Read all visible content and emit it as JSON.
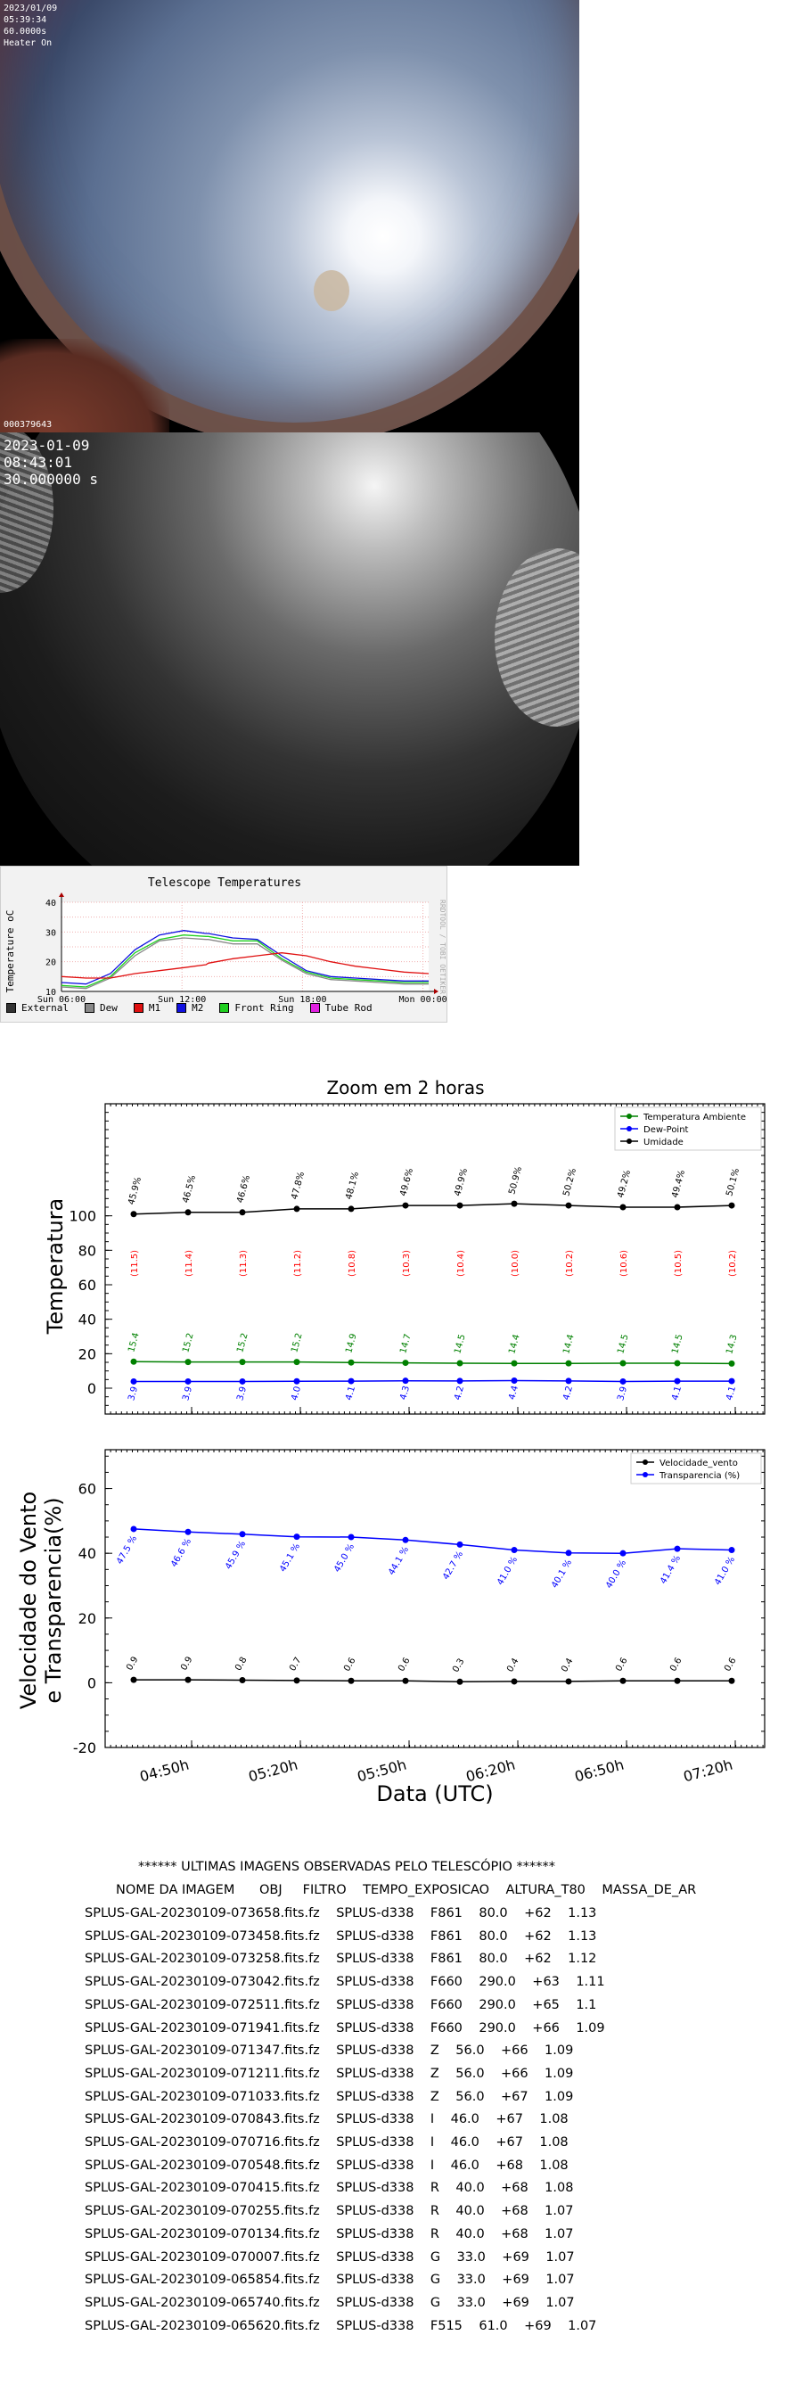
{
  "camera1": {
    "date": "2023/01/09",
    "time": "05:39:34",
    "exposure": "60.0000s",
    "heater": "Heater On",
    "frame_id": "000379643"
  },
  "camera2": {
    "date": "2023-01-09",
    "time": "08:43:01",
    "exposure": "30.000000 s"
  },
  "telescope_temperatures": {
    "title": "Telescope Temperatures",
    "ylabel": "Temperature oC",
    "side_label": "RRDTOOL / TOBI OETIKER",
    "legend": [
      {
        "label": "External",
        "color": "#333333"
      },
      {
        "label": "Dew",
        "color": "#888888"
      },
      {
        "label": "M1",
        "color": "#e01010"
      },
      {
        "label": "M2",
        "color": "#1010e0"
      },
      {
        "label": "Front Ring",
        "color": "#20d020"
      },
      {
        "label": "Tube Rod",
        "color": "#e020e0"
      }
    ],
    "chart_data": {
      "type": "line",
      "title": "Telescope Temperatures",
      "ylabel": "Temperature oC",
      "yticks": [
        10,
        20,
        30,
        40
      ],
      "ylim": [
        10,
        40
      ],
      "xticks": [
        "Sun 06:00",
        "Sun 12:00",
        "Sun 18:00",
        "Mon 00:00"
      ],
      "x_hours": [
        0,
        2,
        4,
        6,
        8,
        10,
        11.8,
        12,
        14,
        16,
        18,
        20,
        22,
        24,
        26,
        28,
        30
      ],
      "series": [
        {
          "name": "M2",
          "color": "#1010e0",
          "values": [
            13,
            12.5,
            16,
            24,
            29,
            30.5,
            29.5,
            29.5,
            28,
            27.5,
            22,
            17,
            15,
            14.5,
            14,
            13.5,
            13.5
          ]
        },
        {
          "name": "Front Ring",
          "color": "#20d020",
          "values": [
            12,
            11.5,
            15,
            23,
            27.5,
            29,
            28.5,
            28.5,
            27,
            27,
            21,
            16.5,
            14.5,
            14,
            13.5,
            13,
            13
          ]
        },
        {
          "name": "Dew",
          "color": "#888888",
          "values": [
            11.5,
            11,
            14.5,
            22,
            27,
            28,
            27.5,
            27.5,
            26,
            26,
            20.5,
            16,
            14,
            13.5,
            13,
            12.5,
            12.5
          ]
        },
        {
          "name": "M1",
          "color": "#e01010",
          "values": [
            15,
            14.5,
            14.5,
            16,
            17,
            18,
            19,
            19.5,
            21,
            22,
            23,
            22,
            20,
            18.5,
            17.5,
            16.5,
            16
          ]
        }
      ]
    }
  },
  "zoom": {
    "title": "Zoom em 2 horas",
    "top": {
      "ylabel": "Temperatura",
      "legend": [
        "Temperatura Ambiente",
        "Dew-Point",
        "Umidade"
      ],
      "colors": {
        "temp": "#008000",
        "dew": "#0000ff",
        "hum": "#000000",
        "dew_label": "#ff0000"
      },
      "chart_data": {
        "type": "line",
        "ylabel": "Temperatura",
        "xlabel": "",
        "yticks": [
          0,
          20,
          40,
          60,
          80,
          100
        ],
        "ylim": [
          -15,
          165
        ],
        "xticks": [
          "04:50h",
          "05:20h",
          "05:50h",
          "06:20h",
          "06:50h",
          "07:20h"
        ],
        "x": [
          "04:20h",
          "04:35h",
          "04:50h",
          "05:05h",
          "05:20h",
          "05:35h",
          "05:50h",
          "06:05h",
          "06:20h",
          "06:35h",
          "06:50h",
          "07:05h"
        ],
        "series": [
          {
            "name": "Umidade",
            "values": [
              101,
              102,
              102,
              104,
              104,
              106,
              106,
              107,
              106,
              105,
              105,
              106
            ],
            "labels": [
              "45.9%",
              "46.5%",
              "46.6%",
              "47.8%",
              "48.1%",
              "49.6%",
              "49.9%",
              "50.9%",
              "50.2%",
              "49.2%",
              "49.4%",
              "50.1%"
            ]
          },
          {
            "name": "Temperatura Ambiente",
            "values": [
              15.4,
              15.2,
              15.2,
              15.2,
              14.9,
              14.7,
              14.5,
              14.4,
              14.4,
              14.5,
              14.5,
              14.3
            ],
            "labels": [
              "15.4",
              "15.2",
              "15.2",
              "15.2",
              "14.9",
              "14.7",
              "14.5",
              "14.4",
              "14.4",
              "14.5",
              "14.5",
              "14.3"
            ]
          },
          {
            "name": "Dew-Point",
            "values": [
              3.9,
              3.9,
              3.9,
              4.0,
              4.1,
              4.3,
              4.2,
              4.4,
              4.2,
              3.9,
              4.1,
              4.1
            ],
            "labels": [
              "3.9",
              "3.9",
              "3.9",
              "4.0",
              "4.1",
              "4.3",
              "4.2",
              "4.4",
              "4.2",
              "3.9",
              "4.1",
              "4.1"
            ]
          }
        ],
        "dew_diff_labels": [
          "(11.5)",
          "(11.4)",
          "(11.3)",
          "(11.2)",
          "(10.8)",
          "(10.3)",
          "(10.4)",
          "(10.0)",
          "(10.2)",
          "(10.6)",
          "(10.5)",
          "(10.2)"
        ]
      }
    },
    "bottom": {
      "ylabel_line1": "Velocidade do Vento",
      "ylabel_line2": "e Transparencia(%)",
      "xlabel": "Data (UTC)",
      "legend": [
        "Velocidade_vento",
        "Transparencia (%)"
      ],
      "chart_data": {
        "type": "line",
        "ylabel": "Velocidade do Vento e Transparencia(%)",
        "xlabel": "Data (UTC)",
        "yticks": [
          -20,
          0,
          20,
          40,
          60
        ],
        "ylim": [
          -20,
          72
        ],
        "xticks": [
          "04:50h",
          "05:20h",
          "05:50h",
          "06:20h",
          "06:50h",
          "07:20h"
        ],
        "x": [
          "04:20h",
          "04:35h",
          "04:50h",
          "05:05h",
          "05:20h",
          "05:35h",
          "05:50h",
          "06:05h",
          "06:20h",
          "06:35h",
          "06:50h",
          "07:05h"
        ],
        "series": [
          {
            "name": "Transparencia (%)",
            "values": [
              47.5,
              46.6,
              45.9,
              45.1,
              45.0,
              44.1,
              42.7,
              41.0,
              40.1,
              40.0,
              41.4,
              41.0
            ],
            "labels": [
              "47.5 %",
              "46.6 %",
              "45.9 %",
              "45.1 %",
              "45.0 %",
              "44.1 %",
              "42.7 %",
              "41.0 %",
              "40.1 %",
              "40.0 %",
              "41.4 %",
              "41.0 %"
            ]
          },
          {
            "name": "Velocidade_vento",
            "values": [
              0.9,
              0.9,
              0.8,
              0.7,
              0.6,
              0.6,
              0.3,
              0.4,
              0.4,
              0.6,
              0.6,
              0.6
            ],
            "labels": [
              "0.9",
              "0.9",
              "0.8",
              "0.7",
              "0.6",
              "0.6",
              "0.3",
              "0.4",
              "0.4",
              "0.6",
              "0.6",
              "0.6"
            ]
          }
        ]
      }
    }
  },
  "images": {
    "title": "****** ULTIMAS IMAGENS OBSERVADAS PELO TELESCÓPIO ******",
    "header": "NOME DA IMAGEM      OBJ     FILTRO    TEMPO_EXPOSICAO    ALTURA_T80    MASSA_DE_AR",
    "rows": [
      "SPLUS-GAL-20230109-073658.fits.fz    SPLUS-d338    F861    80.0    +62    1.13",
      "SPLUS-GAL-20230109-073458.fits.fz    SPLUS-d338    F861    80.0    +62    1.13",
      "SPLUS-GAL-20230109-073258.fits.fz    SPLUS-d338    F861    80.0    +62    1.12",
      "SPLUS-GAL-20230109-073042.fits.fz    SPLUS-d338    F660    290.0    +63    1.11",
      "SPLUS-GAL-20230109-072511.fits.fz    SPLUS-d338    F660    290.0    +65    1.1",
      "SPLUS-GAL-20230109-071941.fits.fz    SPLUS-d338    F660    290.0    +66    1.09",
      "SPLUS-GAL-20230109-071347.fits.fz    SPLUS-d338    Z    56.0    +66    1.09",
      "SPLUS-GAL-20230109-071211.fits.fz    SPLUS-d338    Z    56.0    +66    1.09",
      "SPLUS-GAL-20230109-071033.fits.fz    SPLUS-d338    Z    56.0    +67    1.09",
      "SPLUS-GAL-20230109-070843.fits.fz    SPLUS-d338    I    46.0    +67    1.08",
      "SPLUS-GAL-20230109-070716.fits.fz    SPLUS-d338    I    46.0    +67    1.08",
      "SPLUS-GAL-20230109-070548.fits.fz    SPLUS-d338    I    46.0    +68    1.08",
      "SPLUS-GAL-20230109-070415.fits.fz    SPLUS-d338    R    40.0    +68    1.08",
      "SPLUS-GAL-20230109-070255.fits.fz    SPLUS-d338    R    40.0    +68    1.07",
      "SPLUS-GAL-20230109-070134.fits.fz    SPLUS-d338    R    40.0    +68    1.07",
      "SPLUS-GAL-20230109-070007.fits.fz    SPLUS-d338    G    33.0    +69    1.07",
      "SPLUS-GAL-20230109-065854.fits.fz    SPLUS-d338    G    33.0    +69    1.07",
      "SPLUS-GAL-20230109-065740.fits.fz    SPLUS-d338    G    33.0    +69    1.07",
      "SPLUS-GAL-20230109-065620.fits.fz    SPLUS-d338    F515    61.0    +69    1.07"
    ]
  }
}
